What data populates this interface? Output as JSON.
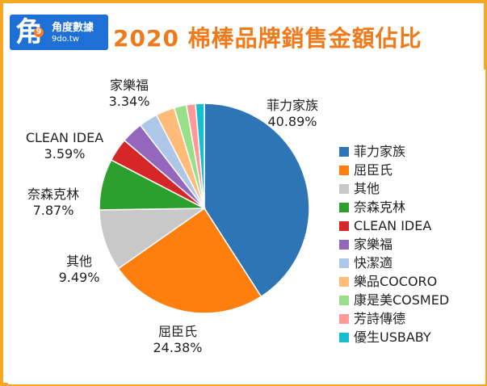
{
  "header": {
    "logo_name": "角度數據",
    "logo_url": "9do.tw",
    "logo_mark": "角",
    "logo_dot": "9"
  },
  "chart_data": {
    "type": "pie",
    "title": "2020 棉棒品牌銷售金額佔比",
    "legend_position": "right",
    "slices": [
      {
        "name": "菲力家族",
        "value": 40.89,
        "label": "40.89%",
        "color": "#2e75b6"
      },
      {
        "name": "屈臣氏",
        "value": 24.38,
        "label": "24.38%",
        "color": "#ff7f0e"
      },
      {
        "name": "其他",
        "value": 9.49,
        "label": "9.49%",
        "color": "#c8c8c8"
      },
      {
        "name": "奈森克林",
        "value": 7.87,
        "label": "7.87%",
        "color": "#2ca02c"
      },
      {
        "name": "CLEAN IDEA",
        "value": 3.59,
        "label": "3.59%",
        "color": "#d62728"
      },
      {
        "name": "家樂福",
        "value": 3.34,
        "label": "3.34%",
        "color": "#9467bd"
      },
      {
        "name": "快潔適",
        "value": 2.9,
        "label": "",
        "color": "#aec7e8"
      },
      {
        "name": "樂品COCORO",
        "value": 2.9,
        "label": "",
        "color": "#ffbb78"
      },
      {
        "name": "康是美COSMED",
        "value": 1.9,
        "label": "",
        "color": "#98df8a"
      },
      {
        "name": "芳詩傳德",
        "value": 1.4,
        "label": "",
        "color": "#ff9896"
      },
      {
        "name": "優生USBABY",
        "value": 1.34,
        "label": "",
        "color": "#17becf"
      }
    ]
  }
}
